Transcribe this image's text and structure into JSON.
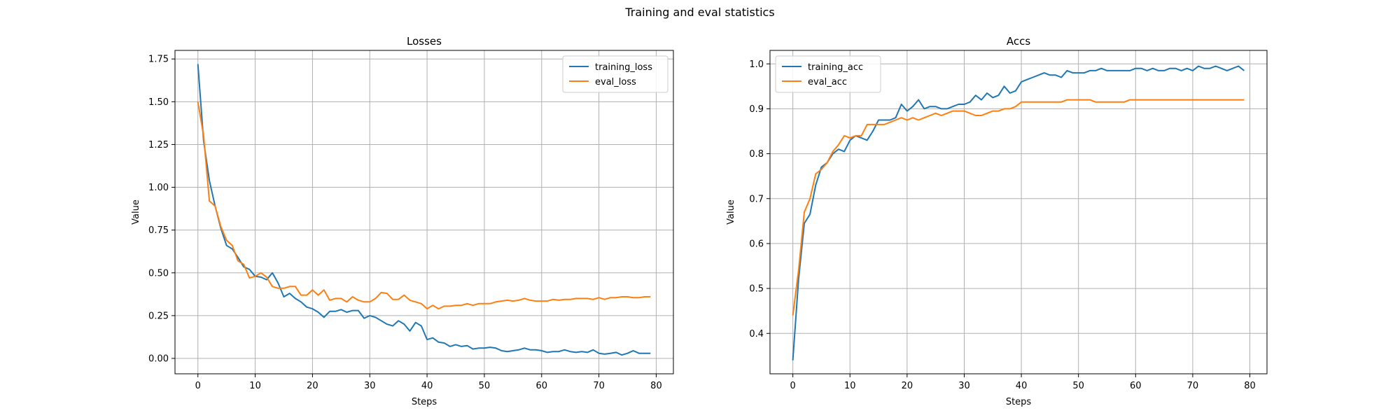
{
  "figure": {
    "title": "Training and eval statistics"
  },
  "chart_data": [
    {
      "type": "line",
      "title": "Losses",
      "xlabel": "Steps",
      "ylabel": "Value",
      "xlim": [
        -4,
        83
      ],
      "ylim": [
        -0.09,
        1.8
      ],
      "xticks": [
        0,
        10,
        20,
        30,
        40,
        50,
        60,
        70,
        80
      ],
      "yticks": [
        0.0,
        0.25,
        0.5,
        0.75,
        1.0,
        1.25,
        1.5,
        1.75
      ],
      "ytick_labels": [
        "0.00",
        "0.25",
        "0.50",
        "0.75",
        "1.00",
        "1.25",
        "1.50",
        "1.75"
      ],
      "grid": true,
      "legend_position": "upper right",
      "x": [
        0,
        1,
        2,
        3,
        4,
        5,
        6,
        7,
        8,
        9,
        10,
        11,
        12,
        13,
        14,
        15,
        16,
        17,
        18,
        19,
        20,
        21,
        22,
        23,
        24,
        25,
        26,
        27,
        28,
        29,
        30,
        31,
        32,
        33,
        34,
        35,
        36,
        37,
        38,
        39,
        40,
        41,
        42,
        43,
        44,
        45,
        46,
        47,
        48,
        49,
        50,
        51,
        52,
        53,
        54,
        55,
        56,
        57,
        58,
        59,
        60,
        61,
        62,
        63,
        64,
        65,
        66,
        67,
        68,
        69,
        70,
        71,
        72,
        73,
        74,
        75,
        76,
        77,
        78,
        79
      ],
      "series": [
        {
          "name": "training_loss",
          "color": "#1f77b4",
          "values": [
            1.72,
            1.27,
            1.04,
            0.89,
            0.76,
            0.66,
            0.64,
            0.59,
            0.535,
            0.52,
            0.48,
            0.475,
            0.46,
            0.5,
            0.44,
            0.36,
            0.38,
            0.35,
            0.33,
            0.3,
            0.29,
            0.27,
            0.24,
            0.275,
            0.275,
            0.285,
            0.27,
            0.28,
            0.28,
            0.235,
            0.25,
            0.24,
            0.22,
            0.2,
            0.19,
            0.22,
            0.2,
            0.16,
            0.21,
            0.19,
            0.11,
            0.12,
            0.095,
            0.09,
            0.07,
            0.08,
            0.07,
            0.075,
            0.055,
            0.06,
            0.06,
            0.065,
            0.06,
            0.045,
            0.04,
            0.045,
            0.05,
            0.06,
            0.05,
            0.05,
            0.045,
            0.035,
            0.04,
            0.04,
            0.05,
            0.04,
            0.035,
            0.04,
            0.035,
            0.05,
            0.03,
            0.025,
            0.03,
            0.035,
            0.02,
            0.03,
            0.045,
            0.03,
            0.03,
            0.03
          ]
        },
        {
          "name": "eval_loss",
          "color": "#ff7f0e",
          "values": [
            1.5,
            1.3,
            0.92,
            0.89,
            0.77,
            0.69,
            0.66,
            0.57,
            0.55,
            0.47,
            0.48,
            0.5,
            0.475,
            0.42,
            0.41,
            0.41,
            0.42,
            0.42,
            0.37,
            0.37,
            0.4,
            0.37,
            0.4,
            0.34,
            0.35,
            0.35,
            0.33,
            0.36,
            0.34,
            0.33,
            0.33,
            0.35,
            0.385,
            0.38,
            0.345,
            0.345,
            0.37,
            0.34,
            0.33,
            0.32,
            0.29,
            0.31,
            0.29,
            0.305,
            0.305,
            0.31,
            0.31,
            0.32,
            0.31,
            0.32,
            0.32,
            0.32,
            0.33,
            0.335,
            0.34,
            0.335,
            0.34,
            0.35,
            0.34,
            0.335,
            0.335,
            0.335,
            0.345,
            0.34,
            0.345,
            0.345,
            0.35,
            0.35,
            0.35,
            0.345,
            0.355,
            0.345,
            0.355,
            0.355,
            0.36,
            0.36,
            0.355,
            0.355,
            0.36,
            0.36
          ]
        }
      ]
    },
    {
      "type": "line",
      "title": "Accs",
      "xlabel": "Steps",
      "ylabel": "Value",
      "xlim": [
        -4,
        83
      ],
      "ylim": [
        0.31,
        1.03
      ],
      "xticks": [
        0,
        10,
        20,
        30,
        40,
        50,
        60,
        70,
        80
      ],
      "yticks": [
        0.4,
        0.5,
        0.6,
        0.7,
        0.8,
        0.9,
        1.0
      ],
      "ytick_labels": [
        "0.4",
        "0.5",
        "0.6",
        "0.7",
        "0.8",
        "0.9",
        "1.0"
      ],
      "grid": true,
      "legend_position": "upper left",
      "x": [
        0,
        1,
        2,
        3,
        4,
        5,
        6,
        7,
        8,
        9,
        10,
        11,
        12,
        13,
        14,
        15,
        16,
        17,
        18,
        19,
        20,
        21,
        22,
        23,
        24,
        25,
        26,
        27,
        28,
        29,
        30,
        31,
        32,
        33,
        34,
        35,
        36,
        37,
        38,
        39,
        40,
        41,
        42,
        43,
        44,
        45,
        46,
        47,
        48,
        49,
        50,
        51,
        52,
        53,
        54,
        55,
        56,
        57,
        58,
        59,
        60,
        61,
        62,
        63,
        64,
        65,
        66,
        67,
        68,
        69,
        70,
        71,
        72,
        73,
        74,
        75,
        76,
        77,
        78,
        79
      ],
      "series": [
        {
          "name": "training_acc",
          "color": "#1f77b4",
          "values": [
            0.34,
            0.52,
            0.645,
            0.665,
            0.73,
            0.77,
            0.78,
            0.8,
            0.81,
            0.805,
            0.83,
            0.84,
            0.835,
            0.83,
            0.85,
            0.875,
            0.875,
            0.875,
            0.88,
            0.91,
            0.895,
            0.905,
            0.92,
            0.9,
            0.905,
            0.905,
            0.9,
            0.9,
            0.905,
            0.91,
            0.91,
            0.915,
            0.93,
            0.92,
            0.935,
            0.925,
            0.93,
            0.95,
            0.935,
            0.94,
            0.96,
            0.965,
            0.97,
            0.975,
            0.98,
            0.975,
            0.975,
            0.97,
            0.985,
            0.98,
            0.98,
            0.98,
            0.985,
            0.985,
            0.99,
            0.985,
            0.985,
            0.985,
            0.985,
            0.985,
            0.99,
            0.99,
            0.985,
            0.99,
            0.985,
            0.985,
            0.99,
            0.99,
            0.985,
            0.99,
            0.985,
            0.995,
            0.99,
            0.99,
            0.995,
            0.99,
            0.985,
            0.99,
            0.995,
            0.985
          ]
        },
        {
          "name": "eval_acc",
          "color": "#ff7f0e",
          "values": [
            0.44,
            0.54,
            0.67,
            0.7,
            0.755,
            0.765,
            0.78,
            0.805,
            0.82,
            0.84,
            0.835,
            0.84,
            0.84,
            0.865,
            0.865,
            0.865,
            0.865,
            0.87,
            0.875,
            0.88,
            0.875,
            0.88,
            0.875,
            0.88,
            0.885,
            0.89,
            0.885,
            0.89,
            0.895,
            0.895,
            0.895,
            0.89,
            0.885,
            0.885,
            0.89,
            0.895,
            0.895,
            0.9,
            0.9,
            0.905,
            0.915,
            0.915,
            0.915,
            0.915,
            0.915,
            0.915,
            0.915,
            0.915,
            0.92,
            0.92,
            0.92,
            0.92,
            0.92,
            0.915,
            0.915,
            0.915,
            0.915,
            0.915,
            0.915,
            0.92,
            0.92,
            0.92,
            0.92,
            0.92,
            0.92,
            0.92,
            0.92,
            0.92,
            0.92,
            0.92,
            0.92,
            0.92,
            0.92,
            0.92,
            0.92,
            0.92,
            0.92,
            0.92,
            0.92,
            0.92
          ]
        }
      ]
    }
  ]
}
